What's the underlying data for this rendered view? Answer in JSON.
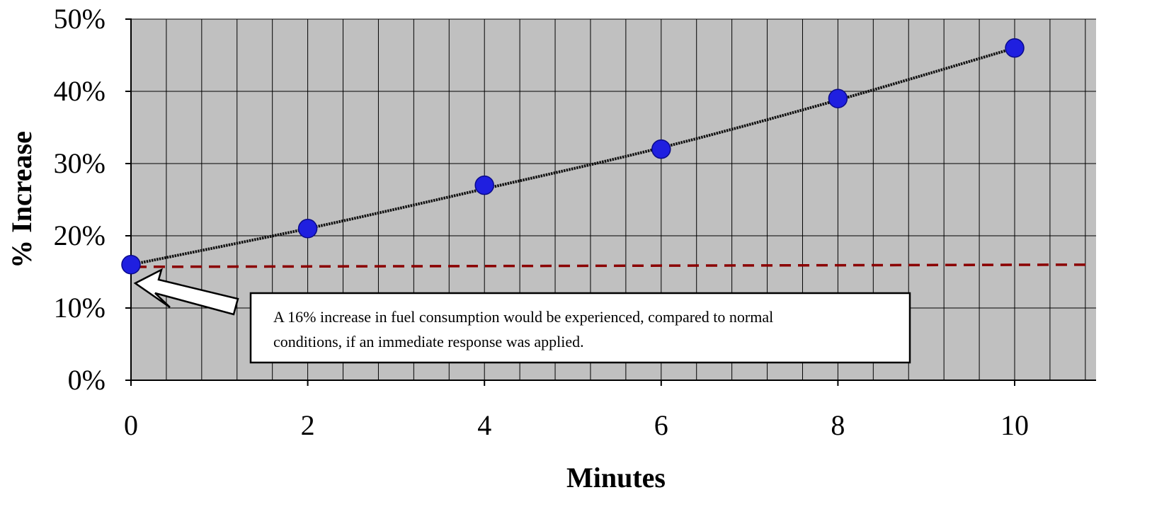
{
  "chart_data": {
    "type": "scatter",
    "title": "",
    "xlabel": "Minutes",
    "ylabel": "% Increase",
    "xlim": [
      0,
      11
    ],
    "ylim": [
      0,
      0.5
    ],
    "x_ticks": [
      0,
      2,
      4,
      6,
      8,
      10
    ],
    "x_tick_labels": [
      "0",
      "2",
      "4",
      "6",
      "8",
      "10"
    ],
    "y_ticks": [
      0,
      0.1,
      0.2,
      0.3,
      0.4,
      0.5
    ],
    "y_tick_labels": [
      "0%",
      "10%",
      "20%",
      "30%",
      "40%",
      "50%"
    ],
    "grid": true,
    "minor_x_step": 0.4,
    "series": [
      {
        "kind": "points",
        "color": "#1f1fe0",
        "x": [
          0,
          2,
          4,
          6,
          8,
          10
        ],
        "y": [
          0.16,
          0.21,
          0.27,
          0.32,
          0.39,
          0.46
        ]
      },
      {
        "kind": "trendline",
        "style": "dotted",
        "color": "#111111",
        "x": [
          0,
          2,
          4,
          6,
          8,
          10
        ],
        "y": [
          0.16,
          0.21,
          0.265,
          0.322,
          0.388,
          0.46
        ]
      },
      {
        "kind": "reference-line",
        "style": "dashed",
        "color": "#8b0000",
        "x": [
          0,
          11
        ],
        "y": [
          0.157,
          0.16
        ]
      }
    ],
    "annotations": [
      {
        "lines": [
          "A 16% increase in  fuel consumption would be experienced, compared to normal",
          "conditions, if an immediate response was applied."
        ]
      }
    ],
    "colors": {
      "plot_background": "#c0c0c0",
      "grid": "#000000"
    }
  }
}
